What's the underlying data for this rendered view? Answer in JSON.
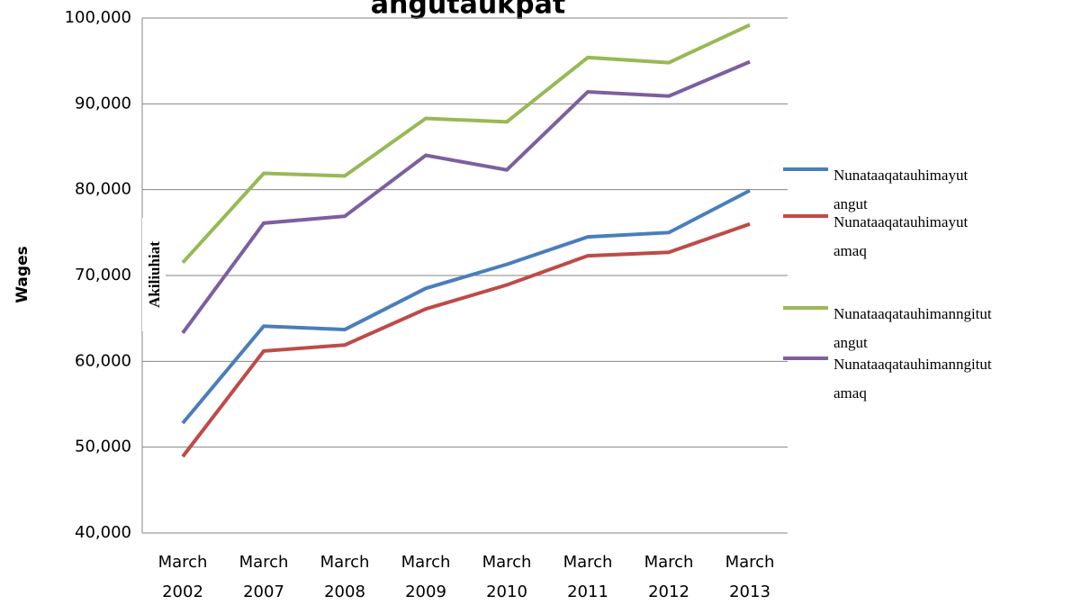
{
  "chart_data": {
    "type": "line",
    "title": "angutaukpat",
    "y_label": "Wages",
    "annotation": "Akiliuhiat",
    "categories": [
      "March 2002",
      "March 2007",
      "March 2008",
      "March 2009",
      "March 2010",
      "March 2011",
      "March 2012",
      "March 2013"
    ],
    "series": [
      {
        "name": "Nunataaqatauhimayut angut",
        "color": "#4a7ebb",
        "values": [
          52800,
          64100,
          63700,
          68500,
          71300,
          74500,
          75000,
          79900
        ]
      },
      {
        "name": "Nunataaqatauhimayut amaq",
        "color": "#be4b48",
        "values": [
          48900,
          61200,
          61900,
          66100,
          68900,
          72300,
          72700,
          76000
        ]
      },
      {
        "name": "Nunataaqatauhimanngitut angut",
        "color": "#98b954",
        "values": [
          71500,
          81900,
          81600,
          88300,
          87900,
          95400,
          94800,
          99200
        ]
      },
      {
        "name": "Nunataaqatauhimanngitut amaq",
        "color": "#7d5fa0",
        "values": [
          63300,
          76100,
          76900,
          84000,
          82300,
          91400,
          90900,
          94900
        ]
      }
    ],
    "ylim": [
      40000,
      100000
    ],
    "yticks": [
      {
        "value": 40000,
        "label": "40,000"
      },
      {
        "value": 50000,
        "label": "50,000"
      },
      {
        "value": 60000,
        "label": "60,000"
      },
      {
        "value": 70000,
        "label": "70,000"
      },
      {
        "value": 80000,
        "label": "80,000"
      },
      {
        "value": 90000,
        "label": "90,000"
      },
      {
        "value": 100000,
        "label": "100,000"
      }
    ],
    "grid": true,
    "legend": "right"
  }
}
